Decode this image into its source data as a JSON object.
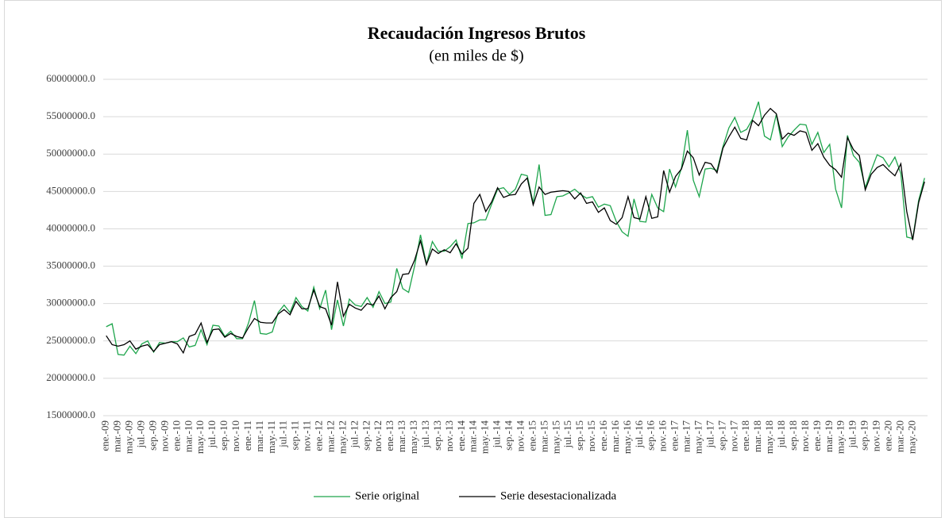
{
  "chart_data": {
    "type": "line",
    "title": "Recaudación Ingresos Brutos",
    "subtitle": "(en miles de $)",
    "categories": [
      "ene.-09",
      null,
      "mar.-09",
      null,
      "may.-09",
      null,
      "jul.-09",
      null,
      "sep.-09",
      null,
      "nov.-09",
      null,
      "ene.-10",
      null,
      "mar.-10",
      null,
      "may.-10",
      null,
      "jul.-10",
      null,
      "sep.-10",
      null,
      "nov.-10",
      null,
      "ene.-11",
      null,
      "mar.-11",
      null,
      "may.-11",
      null,
      "jul.-11",
      null,
      "sep.-11",
      null,
      "nov.-11",
      null,
      "ene.-12",
      null,
      "mar.-12",
      null,
      "may.-12",
      null,
      "jul.-12",
      null,
      "sep.-12",
      null,
      "nov.-12",
      null,
      "ene.-13",
      null,
      "mar.-13",
      null,
      "may.-13",
      null,
      "jul.-13",
      null,
      "sep.-13",
      null,
      "nov.-13",
      null,
      "ene.-14",
      null,
      "mar.-14",
      null,
      "may.-14",
      null,
      "jul.-14",
      null,
      "sep.-14",
      null,
      "nov.-14",
      null,
      "ene.-15",
      null,
      "mar.-15",
      null,
      "may.-15",
      null,
      "jul.-15",
      null,
      "sep.-15",
      null,
      "nov.-15",
      null,
      "ene.-16",
      null,
      "mar.-16",
      null,
      "may.-16",
      null,
      "jul.-16",
      null,
      "sep.-16",
      null,
      "nov.-16",
      null,
      "ene.-17",
      null,
      "mar.-17",
      null,
      "may.-17",
      null,
      "jul.-17",
      null,
      "sep.-17",
      null,
      "nov.-17",
      null,
      "ene.-18",
      null,
      "mar.-18",
      null,
      "may.-18",
      null,
      "jul.-18",
      null,
      "sep.-18",
      null,
      "nov.-18",
      null,
      "ene.-19",
      null,
      "mar.-19",
      null,
      "may.-19",
      null,
      "jul.-19",
      null,
      "sep.-19",
      null,
      "nov.-19",
      null,
      "ene.-20",
      null,
      "mar.-20",
      null,
      "may.-20",
      null,
      null
    ],
    "series": [
      {
        "name": "Serie original",
        "color": "#1ea54c",
        "values": [
          26900000,
          27300000,
          23200000,
          23100000,
          24300000,
          23300000,
          24600000,
          25000000,
          23500000,
          24800000,
          24700000,
          24900000,
          24900000,
          25400000,
          24200000,
          24400000,
          26500000,
          24500000,
          27100000,
          27000000,
          25600000,
          26300000,
          25300000,
          25300000,
          27400000,
          30400000,
          26000000,
          25900000,
          26200000,
          28800000,
          29800000,
          28800000,
          30800000,
          29600000,
          29000000,
          32200000,
          29300000,
          31800000,
          26500000,
          30500000,
          27000000,
          30600000,
          29800000,
          29600000,
          30800000,
          29500000,
          31600000,
          30000000,
          30200000,
          34700000,
          32000000,
          31500000,
          35000000,
          39200000,
          35300000,
          38300000,
          37000000,
          37000000,
          37600000,
          38500000,
          36000000,
          40700000,
          40800000,
          41200000,
          41200000,
          43300000,
          45300000,
          45500000,
          44600000,
          45300000,
          47300000,
          47100000,
          43500000,
          48600000,
          41800000,
          41900000,
          44300000,
          44400000,
          44800000,
          45300000,
          44600000,
          44100000,
          44300000,
          42900000,
          43300000,
          43100000,
          41000000,
          39600000,
          39000000,
          44000000,
          41000000,
          40900000,
          44600000,
          42800000,
          42300000,
          48000000,
          45600000,
          48100000,
          53200000,
          46500000,
          44300000,
          48000000,
          48100000,
          47800000,
          51000000,
          53500000,
          54900000,
          52900000,
          53300000,
          54700000,
          57000000,
          52400000,
          51900000,
          55300000,
          51000000,
          52300000,
          53200000,
          54000000,
          53900000,
          51300000,
          52900000,
          50200000,
          51300000,
          45300000,
          42800000,
          52500000,
          49800000,
          48900000,
          45500000,
          47800000,
          49900000,
          49500000,
          48300000,
          49600000,
          47400000,
          38900000,
          38700000,
          43800000,
          46800000
        ]
      },
      {
        "name": "Serie desestacionalizada",
        "color": "#000000",
        "values": [
          25700000,
          24500000,
          24300000,
          24500000,
          25000000,
          23900000,
          24300000,
          24500000,
          23600000,
          24500000,
          24700000,
          24900000,
          24600000,
          23400000,
          25600000,
          25900000,
          27400000,
          24800000,
          26500000,
          26600000,
          25500000,
          26000000,
          25600000,
          25400000,
          26800000,
          28000000,
          27500000,
          27400000,
          27400000,
          28600000,
          29200000,
          28500000,
          30300000,
          29300000,
          29300000,
          31800000,
          29600000,
          29300000,
          27100000,
          32900000,
          28300000,
          29900000,
          29400000,
          29100000,
          30000000,
          29800000,
          31000000,
          29300000,
          30800000,
          31600000,
          33900000,
          34000000,
          35800000,
          38400000,
          35200000,
          37300000,
          36700000,
          37200000,
          36800000,
          38000000,
          36600000,
          37400000,
          43400000,
          44600000,
          42300000,
          43600000,
          45500000,
          44200000,
          44500000,
          44600000,
          46000000,
          46800000,
          43200000,
          45600000,
          44600000,
          44900000,
          45000000,
          45100000,
          45000000,
          44000000,
          44800000,
          43400000,
          43600000,
          42200000,
          42800000,
          41100000,
          40600000,
          41500000,
          44300000,
          41500000,
          41300000,
          44300000,
          41400000,
          41600000,
          47800000,
          44900000,
          47000000,
          48000000,
          50400000,
          49500000,
          47200000,
          48900000,
          48700000,
          47500000,
          50800000,
          52300000,
          53600000,
          52100000,
          51900000,
          54500000,
          53800000,
          55200000,
          56100000,
          55400000,
          52000000,
          52800000,
          52500000,
          53100000,
          52900000,
          50500000,
          51400000,
          49600000,
          48500000,
          47900000,
          46900000,
          52200000,
          50600000,
          49800000,
          45200000,
          47300000,
          48200000,
          48600000,
          47800000,
          47100000,
          48700000,
          42300000,
          38500000,
          43500000,
          46300000
        ]
      }
    ],
    "ylim": [
      15000000,
      60000000
    ],
    "yticks": [
      {
        "value": 15000000,
        "label": "15000000.0"
      },
      {
        "value": 20000000,
        "label": "20000000.0"
      },
      {
        "value": 25000000,
        "label": "25000000.0"
      },
      {
        "value": 30000000,
        "label": "30000000.0"
      },
      {
        "value": 35000000,
        "label": "35000000.0"
      },
      {
        "value": 40000000,
        "label": "40000000.0"
      },
      {
        "value": 45000000,
        "label": "45000000.0"
      },
      {
        "value": 50000000,
        "label": "50000000.0"
      },
      {
        "value": 55000000,
        "label": "55000000.0"
      },
      {
        "value": 60000000,
        "label": "60000000.0"
      }
    ],
    "grid": true,
    "legend": "bottom"
  }
}
